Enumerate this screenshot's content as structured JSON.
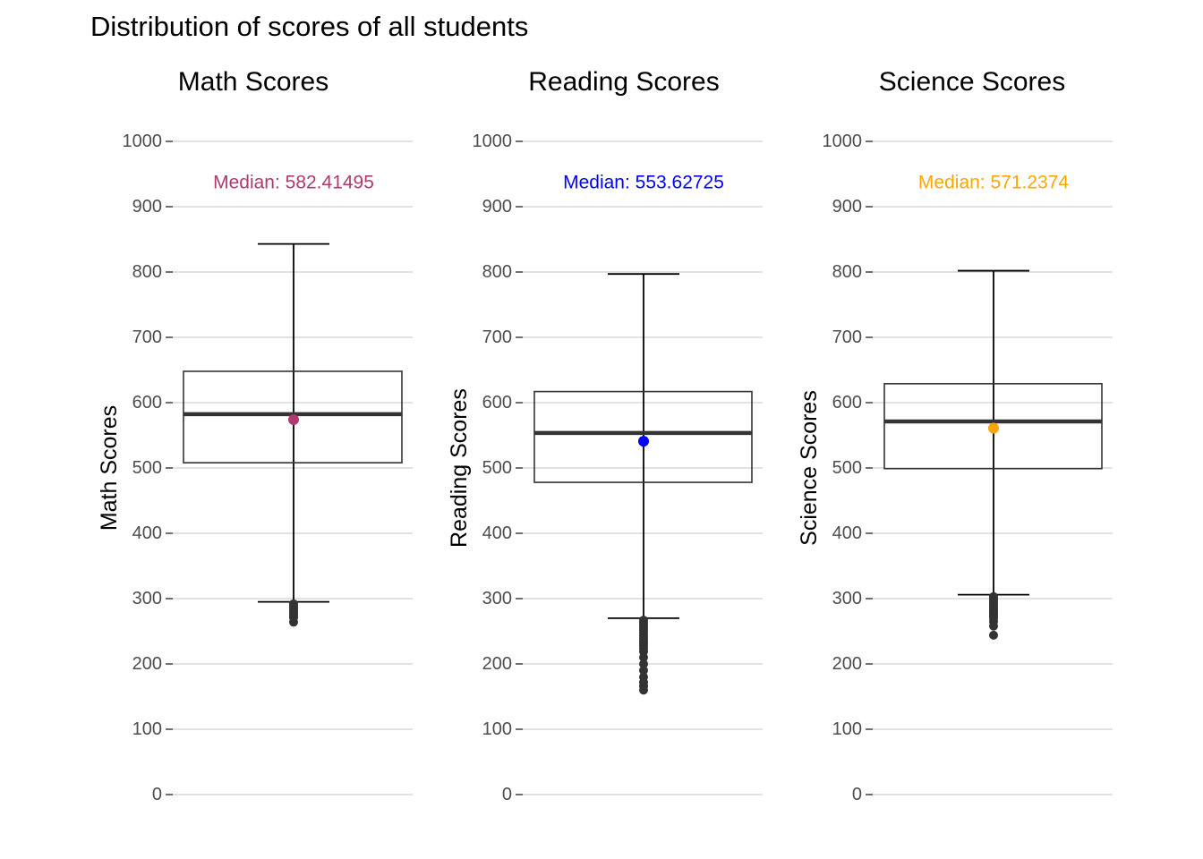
{
  "title": "Distribution of scores of all students",
  "chart_data": [
    {
      "type": "box",
      "title": "Math Scores",
      "ylabel": "Math Scores",
      "xlabel": "",
      "ylim": [
        0,
        1000
      ],
      "yticks": [
        0,
        100,
        200,
        300,
        400,
        500,
        600,
        700,
        800,
        900,
        1000
      ],
      "grid": true,
      "box": {
        "q1": 508,
        "median": 582.41495,
        "q3": 648,
        "whisker_low": 295,
        "whisker_high": 843,
        "mean": 574
      },
      "outliers": [
        292,
        289,
        286,
        283,
        280,
        277,
        274,
        271,
        264
      ],
      "mean_color": "#B03A6E",
      "annotation": {
        "text": "Median: 582.41495",
        "y": 937,
        "color": "#B03A6E"
      }
    },
    {
      "type": "box",
      "title": "Reading Scores",
      "ylabel": "Reading Scores",
      "xlabel": "",
      "ylim": [
        0,
        1000
      ],
      "yticks": [
        0,
        100,
        200,
        300,
        400,
        500,
        600,
        700,
        800,
        900,
        1000
      ],
      "grid": true,
      "box": {
        "q1": 478,
        "median": 553.62725,
        "q3": 617,
        "whisker_low": 270,
        "whisker_high": 797,
        "mean": 541
      },
      "outliers": [
        267,
        263,
        259,
        255,
        251,
        247,
        243,
        239,
        235,
        231,
        227,
        223,
        219,
        210,
        200,
        190,
        180,
        172,
        166,
        160
      ],
      "mean_color": "#0000FF",
      "annotation": {
        "text": "Median: 553.62725",
        "y": 937,
        "color": "#0000FF"
      }
    },
    {
      "type": "box",
      "title": "Science Scores",
      "ylabel": "Science Scores",
      "xlabel": "",
      "ylim": [
        0,
        1000
      ],
      "yticks": [
        0,
        100,
        200,
        300,
        400,
        500,
        600,
        700,
        800,
        900,
        1000
      ],
      "grid": true,
      "box": {
        "q1": 499,
        "median": 571.2374,
        "q3": 629,
        "whisker_low": 306,
        "whisker_high": 802,
        "mean": 561
      },
      "outliers": [
        303,
        300,
        297,
        294,
        291,
        288,
        285,
        282,
        279,
        276,
        273,
        270,
        265,
        258,
        244
      ],
      "mean_color": "#FFA500",
      "annotation": {
        "text": "Median: 571.2374",
        "y": 937,
        "color": "#FFA500"
      }
    }
  ]
}
